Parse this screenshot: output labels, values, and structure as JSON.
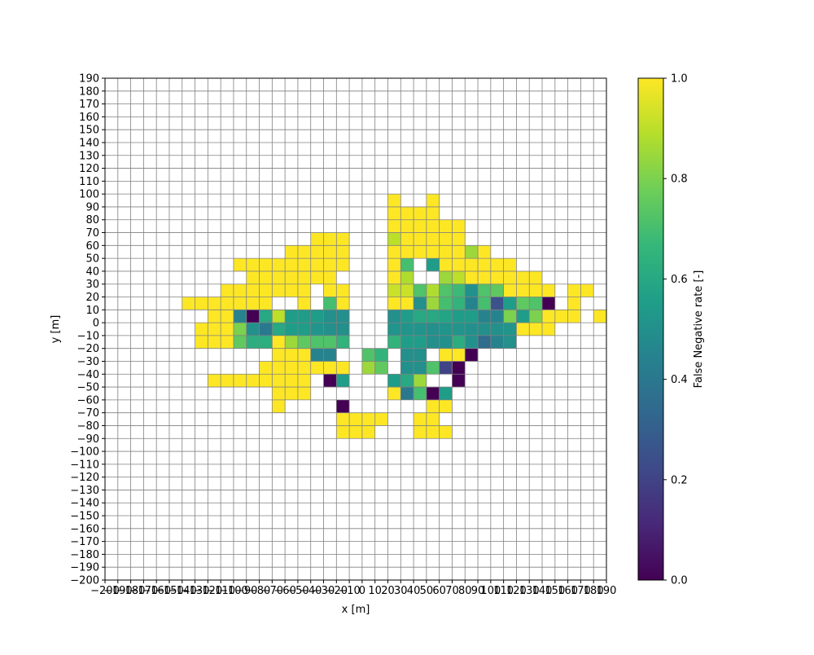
{
  "chart_data": {
    "type": "heatmap",
    "xlabel": "x [m]",
    "ylabel": "y [m]",
    "colorbar_label": "False Negative rate [-]",
    "colormap": "viridis",
    "xlim": [
      -200,
      190
    ],
    "ylim": [
      -200,
      190
    ],
    "clim": [
      0,
      1
    ],
    "cell_size": 10,
    "grid": true,
    "colorbar_ticks": [
      {
        "v": 0,
        "label": "0.0"
      },
      {
        "v": 0.2,
        "label": "0.2"
      },
      {
        "v": 0.4,
        "label": "0.4"
      },
      {
        "v": 0.6,
        "label": "0.6"
      },
      {
        "v": 0.8,
        "label": "0.8"
      },
      {
        "v": 1,
        "label": "1.0"
      }
    ],
    "rows": [
      {
        "y": 90,
        "cells": [
          [
            20,
            1
          ],
          [
            50,
            1
          ]
        ]
      },
      {
        "y": 80,
        "cells": [
          [
            20,
            1
          ],
          [
            40,
            1
          ],
          [
            30,
            1
          ],
          [
            50,
            1
          ]
        ]
      },
      {
        "y": 70,
        "cells": [
          [
            20,
            1
          ],
          [
            30,
            1
          ],
          [
            40,
            1
          ],
          [
            50,
            1
          ],
          [
            60,
            1
          ],
          [
            70,
            1
          ]
        ]
      },
      {
        "y": 60,
        "cells": [
          [
            -40,
            1
          ],
          [
            -30,
            1
          ],
          [
            -20,
            1
          ],
          [
            20,
            0.9
          ],
          [
            30,
            1
          ],
          [
            40,
            1
          ],
          [
            50,
            1
          ],
          [
            60,
            1
          ],
          [
            70,
            1
          ]
        ]
      },
      {
        "y": 50,
        "cells": [
          [
            -60,
            1
          ],
          [
            -50,
            1
          ],
          [
            -40,
            1
          ],
          [
            -30,
            1
          ],
          [
            -20,
            1
          ],
          [
            20,
            1
          ],
          [
            30,
            1
          ],
          [
            40,
            1
          ],
          [
            50,
            1
          ],
          [
            60,
            1
          ],
          [
            70,
            1
          ],
          [
            80,
            0.85
          ],
          [
            90,
            1
          ]
        ]
      },
      {
        "y": 40,
        "cells": [
          [
            -100,
            1
          ],
          [
            -90,
            1
          ],
          [
            -80,
            1
          ],
          [
            -70,
            1
          ],
          [
            -60,
            1
          ],
          [
            -50,
            1
          ],
          [
            -40,
            1
          ],
          [
            -30,
            1
          ],
          [
            -20,
            1
          ],
          [
            20,
            1
          ],
          [
            30,
            0.7
          ],
          [
            50,
            0.55
          ],
          [
            60,
            1
          ],
          [
            70,
            1
          ],
          [
            80,
            1
          ],
          [
            90,
            1
          ],
          [
            100,
            1
          ],
          [
            110,
            1
          ]
        ]
      },
      {
        "y": 30,
        "cells": [
          [
            -90,
            1
          ],
          [
            -80,
            1
          ],
          [
            -70,
            1
          ],
          [
            -60,
            1
          ],
          [
            -50,
            1
          ],
          [
            -40,
            1
          ],
          [
            -30,
            1
          ],
          [
            20,
            1
          ],
          [
            30,
            0.88
          ],
          [
            60,
            0.85
          ],
          [
            70,
            0.9
          ],
          [
            80,
            1
          ],
          [
            90,
            1
          ],
          [
            100,
            1
          ],
          [
            110,
            1
          ],
          [
            120,
            1
          ],
          [
            130,
            1
          ]
        ]
      },
      {
        "y": 20,
        "cells": [
          [
            -110,
            1
          ],
          [
            -100,
            1
          ],
          [
            -90,
            1
          ],
          [
            -80,
            1
          ],
          [
            -70,
            1
          ],
          [
            -60,
            1
          ],
          [
            -50,
            1
          ],
          [
            -30,
            1
          ],
          [
            -20,
            1
          ],
          [
            20,
            0.92
          ],
          [
            30,
            0.92
          ],
          [
            40,
            0.72
          ],
          [
            50,
            0.88
          ],
          [
            60,
            0.72
          ],
          [
            70,
            0.68
          ],
          [
            80,
            0.5
          ],
          [
            90,
            0.72
          ],
          [
            100,
            0.75
          ],
          [
            110,
            1
          ],
          [
            120,
            1
          ],
          [
            130,
            1
          ],
          [
            140,
            1
          ],
          [
            160,
            1
          ],
          [
            170,
            1
          ]
        ]
      },
      {
        "y": 10,
        "cells": [
          [
            -140,
            1
          ],
          [
            -130,
            1
          ],
          [
            -120,
            1
          ],
          [
            -110,
            1
          ],
          [
            -100,
            1
          ],
          [
            -90,
            1
          ],
          [
            -80,
            1
          ],
          [
            -50,
            1
          ],
          [
            -30,
            0.7
          ],
          [
            -20,
            1
          ],
          [
            20,
            1
          ],
          [
            30,
            1
          ],
          [
            40,
            0.5
          ],
          [
            50,
            0.85
          ],
          [
            60,
            0.7
          ],
          [
            70,
            0.65
          ],
          [
            80,
            0.45
          ],
          [
            90,
            0.7
          ],
          [
            100,
            0.25
          ],
          [
            110,
            0.55
          ],
          [
            120,
            0.75
          ],
          [
            130,
            0.72
          ],
          [
            140,
            0
          ],
          [
            160,
            1
          ]
        ]
      },
      {
        "y": 0,
        "cells": [
          [
            -120,
            1
          ],
          [
            -110,
            1
          ],
          [
            -100,
            0.45
          ],
          [
            -90,
            0
          ],
          [
            -80,
            0.6
          ],
          [
            -70,
            0.9
          ],
          [
            -60,
            0.55
          ],
          [
            -50,
            0.55
          ],
          [
            -40,
            0.55
          ],
          [
            -30,
            0.5
          ],
          [
            -20,
            0.5
          ],
          [
            20,
            0.5
          ],
          [
            30,
            0.55
          ],
          [
            40,
            0.6
          ],
          [
            50,
            0.6
          ],
          [
            60,
            0.58
          ],
          [
            70,
            0.55
          ],
          [
            80,
            0.55
          ],
          [
            90,
            0.45
          ],
          [
            100,
            0.45
          ],
          [
            110,
            0.8
          ],
          [
            120,
            0.55
          ],
          [
            130,
            0.8
          ],
          [
            140,
            1
          ],
          [
            150,
            1
          ],
          [
            160,
            1
          ],
          [
            180,
            1
          ]
        ]
      },
      {
        "y": -10,
        "cells": [
          [
            -130,
            1
          ],
          [
            -120,
            1
          ],
          [
            -110,
            1
          ],
          [
            -100,
            0.8
          ],
          [
            -90,
            0.5
          ],
          [
            -80,
            0.4
          ],
          [
            -70,
            0.6
          ],
          [
            -60,
            0.55
          ],
          [
            -50,
            0.55
          ],
          [
            -40,
            0.52
          ],
          [
            -30,
            0.5
          ],
          [
            -20,
            0.5
          ],
          [
            20,
            0.52
          ],
          [
            30,
            0.52
          ],
          [
            40,
            0.52
          ],
          [
            50,
            0.5
          ],
          [
            60,
            0.52
          ],
          [
            70,
            0.52
          ],
          [
            80,
            0.5
          ],
          [
            90,
            0.5
          ],
          [
            100,
            0.5
          ],
          [
            110,
            0.52
          ],
          [
            120,
            1
          ],
          [
            130,
            1
          ],
          [
            140,
            1
          ]
        ]
      },
      {
        "y": -20,
        "cells": [
          [
            -130,
            1
          ],
          [
            -120,
            1
          ],
          [
            -110,
            1
          ],
          [
            -100,
            0.75
          ],
          [
            -90,
            0.62
          ],
          [
            -80,
            0.62
          ],
          [
            -70,
            1
          ],
          [
            -60,
            0.85
          ],
          [
            -50,
            0.75
          ],
          [
            -40,
            0.72
          ],
          [
            -30,
            0.72
          ],
          [
            -20,
            0.65
          ],
          [
            20,
            0.65
          ],
          [
            30,
            0.55
          ],
          [
            40,
            0.55
          ],
          [
            50,
            0.5
          ],
          [
            60,
            0.5
          ],
          [
            70,
            0.62
          ],
          [
            80,
            0.5
          ],
          [
            90,
            0.35
          ],
          [
            100,
            0.45
          ],
          [
            110,
            0.5
          ]
        ]
      },
      {
        "y": -30,
        "cells": [
          [
            -70,
            1
          ],
          [
            -60,
            1
          ],
          [
            -50,
            1
          ],
          [
            -40,
            0.45
          ],
          [
            -30,
            0.45
          ],
          [
            0,
            0.72
          ],
          [
            10,
            0.65
          ],
          [
            30,
            0.5
          ],
          [
            40,
            0.5
          ],
          [
            60,
            1
          ],
          [
            70,
            1
          ],
          [
            80,
            0
          ]
        ]
      },
      {
        "y": -40,
        "cells": [
          [
            -80,
            1
          ],
          [
            -70,
            1
          ],
          [
            -60,
            1
          ],
          [
            -50,
            1
          ],
          [
            -40,
            1
          ],
          [
            -30,
            1
          ],
          [
            -20,
            1
          ],
          [
            0,
            0.85
          ],
          [
            10,
            0.75
          ],
          [
            30,
            0.5
          ],
          [
            40,
            0.5
          ],
          [
            50,
            0.72
          ],
          [
            60,
            0.2
          ],
          [
            70,
            0
          ]
        ]
      },
      {
        "y": -50,
        "cells": [
          [
            -120,
            1
          ],
          [
            -110,
            1
          ],
          [
            -100,
            1
          ],
          [
            -90,
            1
          ],
          [
            -80,
            1
          ],
          [
            -70,
            1
          ],
          [
            -60,
            1
          ],
          [
            -50,
            1
          ],
          [
            -30,
            0
          ],
          [
            -20,
            0.55
          ],
          [
            20,
            0.55
          ],
          [
            30,
            0.6
          ],
          [
            40,
            0.85
          ],
          [
            70,
            0
          ]
        ]
      },
      {
        "y": -60,
        "cells": [
          [
            -70,
            1
          ],
          [
            -60,
            1
          ],
          [
            -50,
            1
          ],
          [
            20,
            1
          ],
          [
            30,
            0.4
          ],
          [
            40,
            0.7
          ],
          [
            50,
            0
          ],
          [
            60,
            0.55
          ]
        ]
      },
      {
        "y": -70,
        "cells": [
          [
            -70,
            1
          ],
          [
            -20,
            0
          ],
          [
            50,
            1
          ],
          [
            60,
            1
          ]
        ]
      },
      {
        "y": -80,
        "cells": [
          [
            -20,
            1
          ],
          [
            -10,
            1
          ],
          [
            0,
            1
          ],
          [
            10,
            1
          ],
          [
            40,
            1
          ],
          [
            50,
            1
          ]
        ]
      },
      {
        "y": -90,
        "cells": [
          [
            -20,
            1
          ],
          [
            -10,
            1
          ],
          [
            0,
            1
          ],
          [
            40,
            1
          ],
          [
            50,
            1
          ],
          [
            60,
            1
          ]
        ]
      }
    ]
  }
}
